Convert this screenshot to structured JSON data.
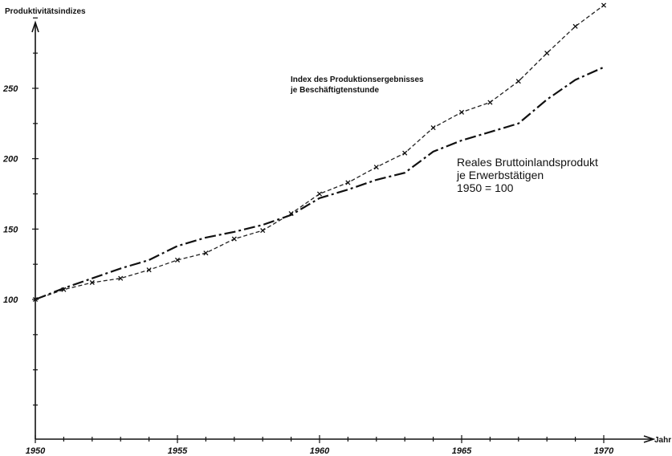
{
  "chart_data": {
    "type": "line",
    "ylabel": "Produktivitätsindizes",
    "xlabel": "Jahr",
    "xlim": [
      1950,
      1970
    ],
    "ylim": [
      0,
      300
    ],
    "yticks": [
      100,
      150,
      200,
      250
    ],
    "xticks": [
      1950,
      1955,
      1960,
      1965,
      1970
    ],
    "x": [
      1950,
      1951,
      1952,
      1953,
      1954,
      1955,
      1956,
      1957,
      1958,
      1959,
      1960,
      1961,
      1962,
      1963,
      1964,
      1965,
      1966,
      1967,
      1968,
      1969,
      1970
    ],
    "series": [
      {
        "name": "Index des Produktionsergebnisses je Beschäftigtenstunde",
        "style": "dashed-with-x-markers",
        "values": [
          100,
          107,
          112,
          115,
          121,
          128,
          133,
          143,
          149,
          161,
          175,
          183,
          194,
          204,
          222,
          233,
          240,
          255,
          275,
          294,
          309
        ]
      },
      {
        "name": "Reales Bruttoinlandsprodukt je Erwerbstätigen",
        "style": "dash-dot",
        "values": [
          100,
          108,
          115,
          122,
          128,
          138,
          144,
          148,
          153,
          160,
          172,
          178,
          185,
          190,
          205,
          213,
          219,
          225,
          242,
          256,
          265
        ]
      }
    ],
    "annotations": {
      "index_line1": "Index des Produktionsergebnisses",
      "index_line2": "je Beschäftigtenstunde",
      "bip_line1": "Reales Bruttoinlandsprodukt",
      "bip_line2": "je Erwerbstätigen",
      "bip_line3": "1950 = 100"
    },
    "grid": false,
    "colors": {
      "ink": "#111111",
      "background": "#ffffff"
    }
  }
}
